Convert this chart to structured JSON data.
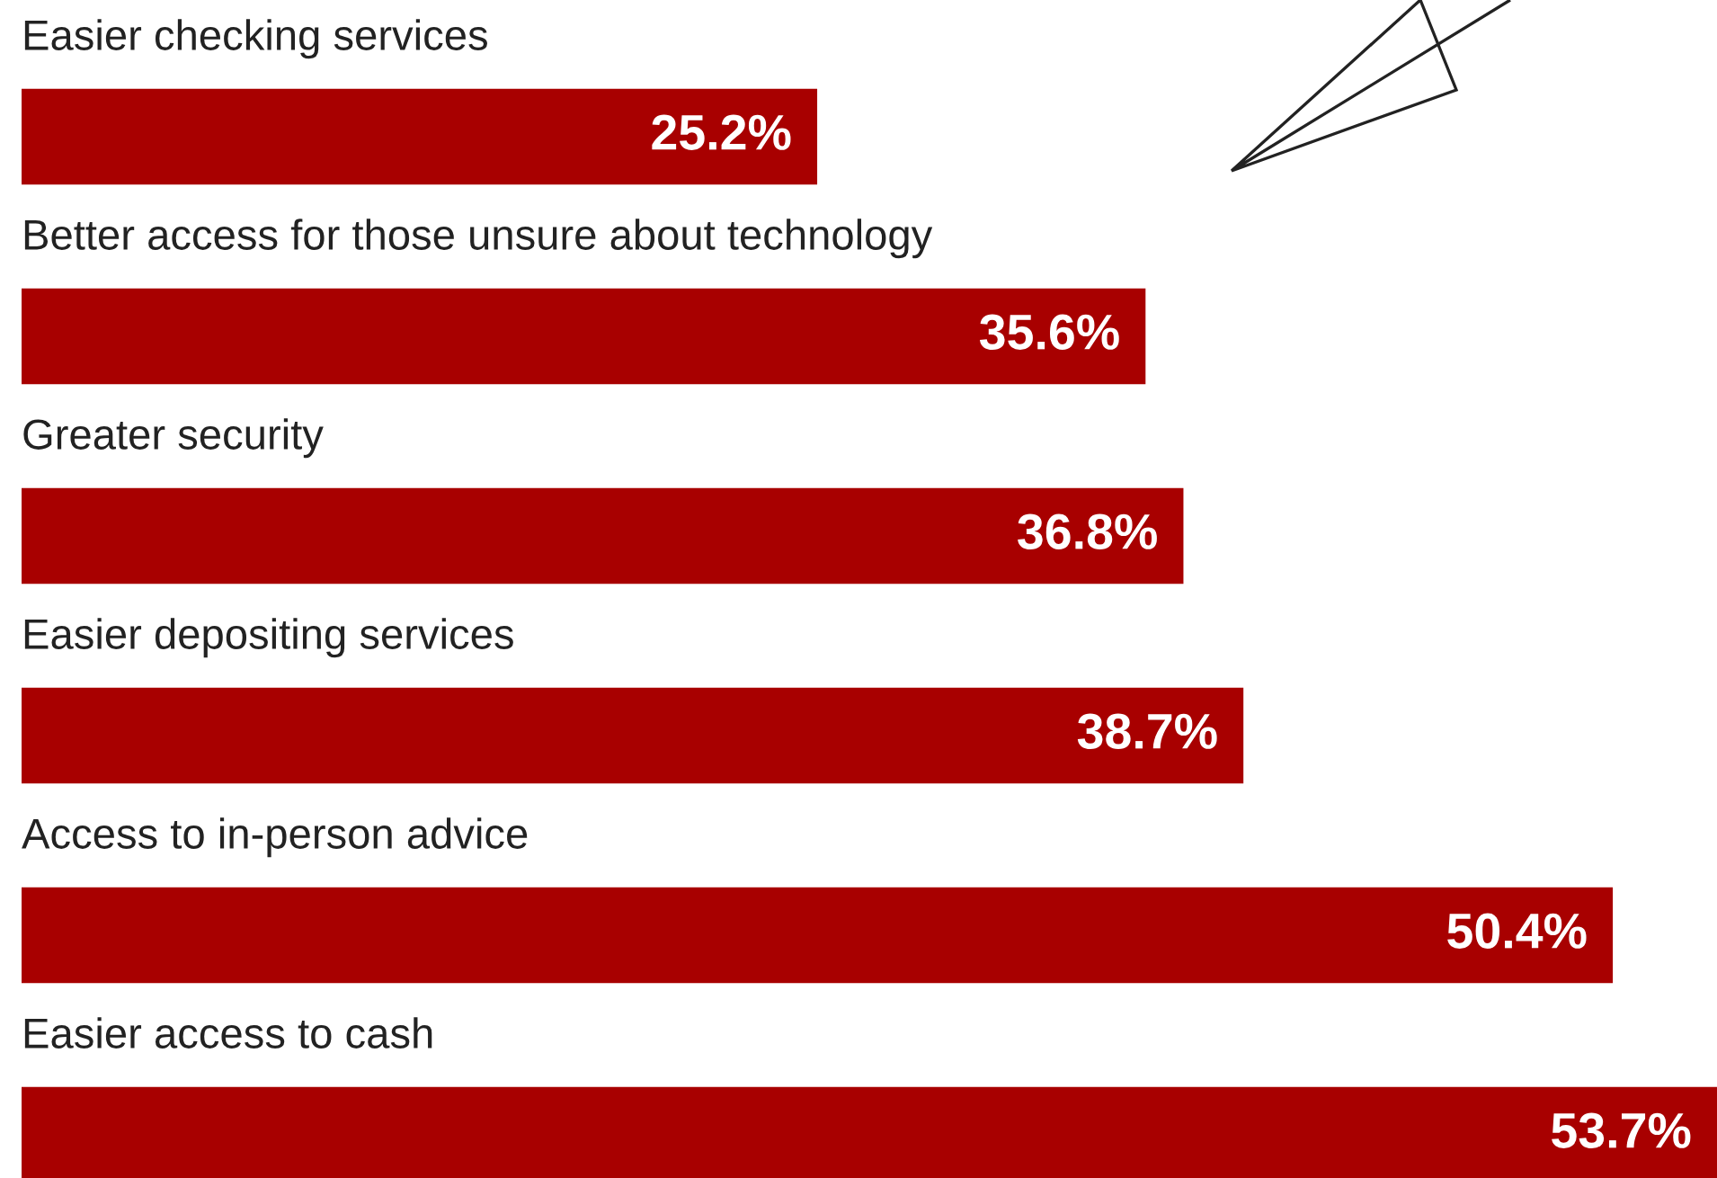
{
  "chart_data": {
    "type": "bar",
    "orientation": "horizontal",
    "categories": [
      "Easier checking services",
      "Better access for those unsure about technology",
      "Greater security",
      "Easier depositing services",
      "Access to in-person advice",
      "Easier access to cash"
    ],
    "values": [
      25.2,
      35.6,
      36.8,
      38.7,
      50.4,
      53.7
    ],
    "value_labels": [
      "25.2%",
      "35.6%",
      "36.8%",
      "38.7%",
      "50.4%",
      "53.7%"
    ],
    "color": "#a80000",
    "legend": false,
    "tick_labels": false
  }
}
